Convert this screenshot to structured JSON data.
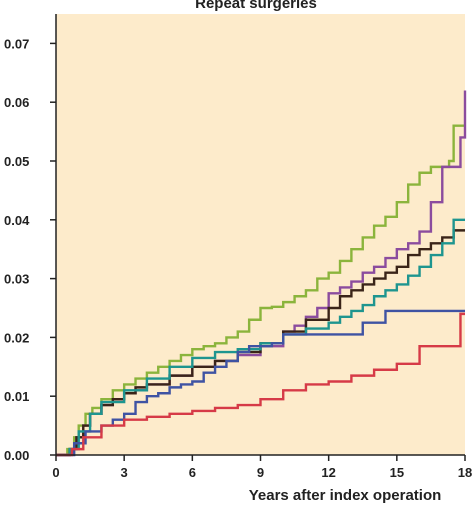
{
  "chart_data": {
    "type": "line",
    "step": true,
    "title": "Repeat surgeries",
    "xlabel": "Years after index operation",
    "ylabel": "",
    "xlim": [
      0,
      18
    ],
    "ylim": [
      0,
      0.075
    ],
    "xticks": [
      0,
      3,
      6,
      9,
      12,
      15,
      18
    ],
    "yticks": [
      0.0,
      0.01,
      0.02,
      0.03,
      0.04,
      0.05,
      0.06,
      0.07
    ],
    "ytick_labels": [
      "0.00",
      "0.01",
      "0.02",
      "0.03",
      "0.04",
      "0.05",
      "0.06",
      "0.07"
    ],
    "grid": false,
    "legend": "none",
    "background": "#FDEBCB",
    "series": [
      {
        "color": "#8BB43C",
        "x": [
          0,
          0.5,
          0.8,
          1.0,
          1.3,
          1.6,
          2.0,
          2.5,
          3.0,
          3.5,
          4.0,
          4.5,
          5.0,
          5.5,
          6.0,
          6.5,
          7.0,
          7.5,
          8.0,
          8.5,
          9.0,
          9.5,
          10.0,
          10.5,
          11.0,
          11.5,
          12.0,
          12.5,
          13.0,
          13.5,
          14.0,
          14.5,
          15.0,
          15.5,
          16.0,
          16.5,
          17.0,
          17.3,
          17.5,
          18.0
        ],
        "y": [
          0,
          0.001,
          0.003,
          0.005,
          0.007,
          0.008,
          0.0095,
          0.011,
          0.012,
          0.013,
          0.014,
          0.015,
          0.016,
          0.017,
          0.018,
          0.0185,
          0.019,
          0.02,
          0.021,
          0.023,
          0.025,
          0.0252,
          0.026,
          0.027,
          0.028,
          0.03,
          0.031,
          0.033,
          0.035,
          0.037,
          0.039,
          0.0405,
          0.043,
          0.046,
          0.048,
          0.049,
          0.049,
          0.05,
          0.056,
          0.056
        ]
      },
      {
        "color": "#8B4C9E",
        "x": [
          0,
          0.6,
          0.9,
          1.2,
          1.5,
          2.0,
          2.5,
          3.0,
          3.5,
          4.0,
          5.0,
          6.0,
          7.0,
          8.0,
          9.0,
          10.0,
          10.5,
          11.0,
          11.5,
          12.0,
          12.5,
          13.0,
          13.5,
          14.0,
          14.5,
          15.0,
          15.5,
          16.0,
          16.5,
          17.0,
          17.5,
          17.8,
          18.0
        ],
        "y": [
          0,
          0.001,
          0.003,
          0.005,
          0.007,
          0.0085,
          0.0095,
          0.0105,
          0.011,
          0.012,
          0.0135,
          0.015,
          0.016,
          0.017,
          0.0185,
          0.021,
          0.022,
          0.0235,
          0.025,
          0.0275,
          0.0285,
          0.0295,
          0.031,
          0.032,
          0.0335,
          0.035,
          0.036,
          0.038,
          0.043,
          0.049,
          0.049,
          0.054,
          0.062
        ]
      },
      {
        "color": "#3A2418",
        "x": [
          0,
          0.6,
          0.9,
          1.2,
          1.5,
          2.0,
          2.5,
          3.0,
          3.5,
          4.0,
          5.0,
          6.0,
          7.0,
          8.0,
          9.0,
          10.0,
          11.0,
          12.0,
          12.5,
          13.0,
          13.5,
          14.0,
          14.5,
          15.0,
          15.5,
          16.0,
          16.5,
          17.0,
          17.5,
          18.0
        ],
        "y": [
          0,
          0.001,
          0.003,
          0.005,
          0.007,
          0.0085,
          0.0095,
          0.0105,
          0.0115,
          0.012,
          0.0135,
          0.015,
          0.016,
          0.0175,
          0.019,
          0.021,
          0.023,
          0.025,
          0.027,
          0.028,
          0.029,
          0.03,
          0.031,
          0.032,
          0.034,
          0.035,
          0.036,
          0.037,
          0.0382,
          0.0382
        ]
      },
      {
        "color": "#1E958F",
        "x": [
          0,
          0.6,
          1.0,
          1.5,
          2.0,
          3.0,
          4.0,
          5.0,
          6.0,
          7.0,
          8.0,
          9.0,
          10.0,
          11.0,
          12.0,
          12.5,
          13.0,
          13.5,
          14.0,
          14.5,
          15.0,
          15.5,
          16.0,
          16.5,
          17.0,
          17.5,
          18.0
        ],
        "y": [
          0,
          0.001,
          0.004,
          0.007,
          0.009,
          0.011,
          0.013,
          0.015,
          0.0165,
          0.0175,
          0.018,
          0.019,
          0.0205,
          0.0215,
          0.0225,
          0.0235,
          0.0245,
          0.0255,
          0.027,
          0.028,
          0.029,
          0.0305,
          0.032,
          0.034,
          0.036,
          0.04,
          0.04
        ]
      },
      {
        "color": "#3F53A3",
        "x": [
          0,
          0.8,
          1.3,
          2.0,
          2.5,
          3.0,
          3.5,
          4.0,
          4.5,
          5.0,
          5.5,
          6.0,
          6.5,
          7.0,
          7.5,
          8.0,
          8.5,
          9.0,
          9.5,
          10.0,
          11.0,
          12.0,
          13.0,
          13.5,
          14.0,
          14.5,
          15.0,
          15.5,
          16.0,
          17.0,
          18.0
        ],
        "y": [
          0,
          0.002,
          0.004,
          0.005,
          0.006,
          0.007,
          0.009,
          0.01,
          0.0105,
          0.0115,
          0.012,
          0.0125,
          0.014,
          0.015,
          0.016,
          0.0175,
          0.0185,
          0.0185,
          0.019,
          0.0205,
          0.0205,
          0.0205,
          0.0205,
          0.0225,
          0.0225,
          0.0245,
          0.0245,
          0.0245,
          0.0245,
          0.0245,
          0.0245
        ]
      },
      {
        "color": "#D63A47",
        "x": [
          0,
          0.7,
          1.2,
          2.0,
          3.0,
          4.0,
          5.0,
          6.0,
          7.0,
          8.0,
          9.0,
          10.0,
          11.0,
          12.0,
          13.0,
          14.0,
          15.0,
          16.0,
          17.0,
          17.8,
          18.0
        ],
        "y": [
          0,
          0.001,
          0.003,
          0.005,
          0.006,
          0.0065,
          0.007,
          0.0075,
          0.008,
          0.0085,
          0.0095,
          0.011,
          0.012,
          0.0125,
          0.0135,
          0.0145,
          0.0155,
          0.0185,
          0.0185,
          0.024,
          0.024
        ]
      }
    ]
  }
}
